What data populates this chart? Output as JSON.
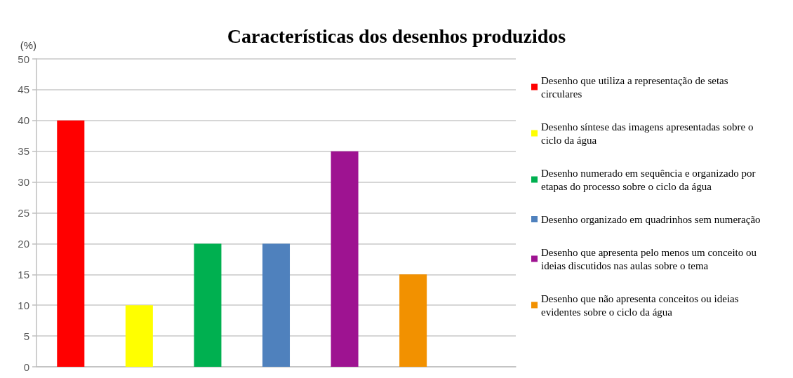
{
  "chart_data": {
    "type": "bar",
    "title": "Características dos desenhos produzidos",
    "ylabel": "(%)",
    "categories": [
      null,
      null,
      null,
      null,
      null,
      null,
      null
    ],
    "series": [
      {
        "name": "Desenho que utiliza a representação de setas circulares",
        "color": "#ff0000",
        "values": [
          40,
          null,
          null,
          null,
          null,
          null,
          null
        ]
      },
      {
        "name": "Desenho síntese das imagens apresentadas sobre o ciclo da água",
        "color": "#ffff00",
        "values": [
          null,
          10,
          null,
          null,
          null,
          null,
          null
        ]
      },
      {
        "name": "Desenho numerado em sequência e organizado por etapas do processo sobre o ciclo da água",
        "color": "#00b050",
        "values": [
          null,
          null,
          20,
          null,
          null,
          null,
          null
        ]
      },
      {
        "name": "Desenho organizado em quadrinhos sem numeração",
        "color": "#4f81bd",
        "values": [
          null,
          null,
          null,
          20,
          null,
          null,
          null
        ]
      },
      {
        "name": "Desenho que apresenta pelo menos um conceito ou ideias discutidos nas aulas sobre o tema",
        "color": "#9e1391",
        "values": [
          null,
          null,
          null,
          null,
          35,
          null,
          null
        ]
      },
      {
        "name": "Desenho que não apresenta conceitos ou ideias evidentes sobre o ciclo da água",
        "color": "#f29100",
        "values": [
          null,
          null,
          null,
          null,
          null,
          15,
          null
        ]
      }
    ],
    "ylim": [
      0,
      50
    ],
    "yticks": [
      0,
      5,
      10,
      15,
      20,
      25,
      30,
      35,
      40,
      45,
      50
    ],
    "grid": "y",
    "legend": "right"
  }
}
